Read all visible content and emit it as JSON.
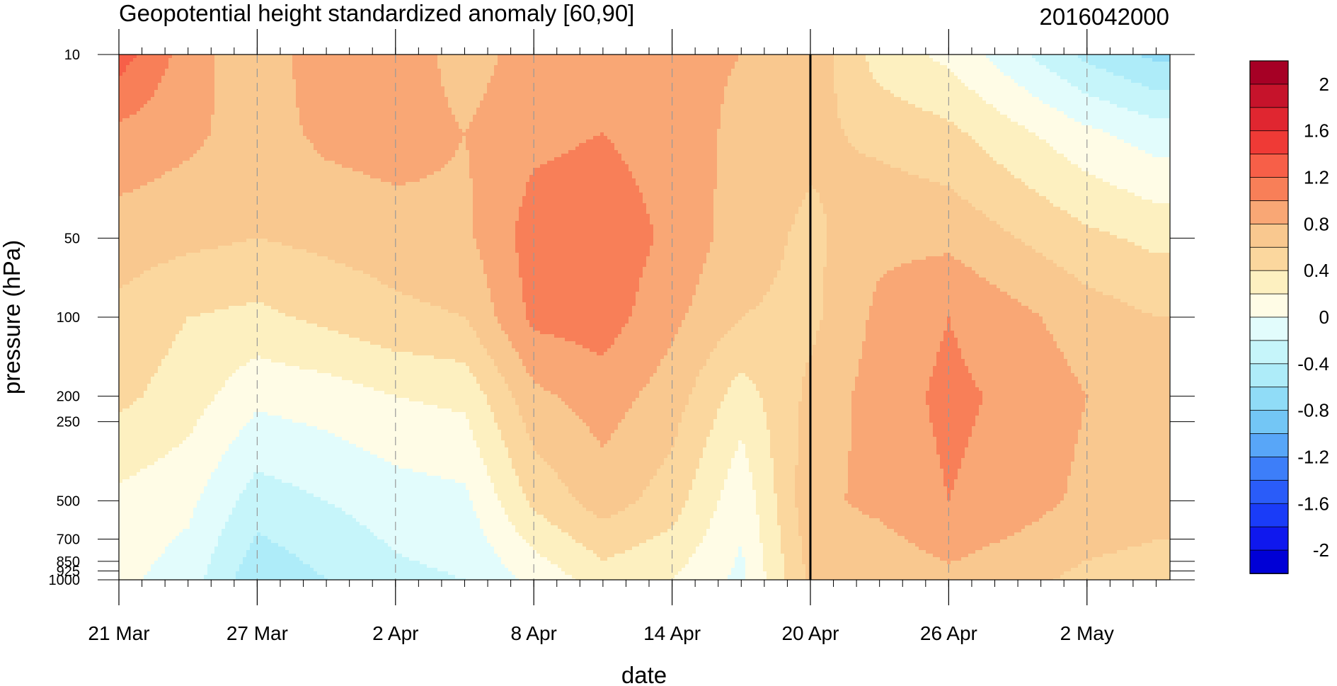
{
  "chart_data": {
    "type": "heatmap",
    "title": "Geopotential height standardized anomaly [60,90]",
    "subtitle": "2016042000",
    "xlabel": "date",
    "ylabel": "pressure (hPa)",
    "x_axis": {
      "unit": "days",
      "range": [
        "21 Mar",
        "5 May"
      ],
      "tick_labels": [
        "21 Mar",
        "27 Mar",
        "2 Apr",
        "8 Apr",
        "14 Apr",
        "20 Apr",
        "26 Apr",
        "2 May"
      ],
      "tick_dates": [
        "2016-03-21",
        "2016-03-27",
        "2016-04-02",
        "2016-04-08",
        "2016-04-14",
        "2016-04-20",
        "2016-04-26",
        "2016-05-02"
      ],
      "minor_tick_interval_days": 1,
      "vertical_marker": "20 Apr"
    },
    "y_axis": {
      "scale": "log",
      "reversed": true,
      "range": [
        1000,
        10
      ],
      "tick_labels": [
        "10",
        "50",
        "100",
        "200",
        "250",
        "500",
        "700",
        "850",
        "925",
        "1000"
      ],
      "tick_values": [
        10,
        50,
        100,
        200,
        250,
        500,
        700,
        850,
        925,
        1000
      ]
    },
    "colorbar": {
      "labels": [
        "2",
        "1.6",
        "1.2",
        "0.8",
        "0.4",
        "0",
        "-0.4",
        "-0.8",
        "-1.2",
        "-1.6",
        "-2"
      ],
      "levels": [
        -2.2,
        -2.0,
        -1.8,
        -1.6,
        -1.4,
        -1.2,
        -1.0,
        -0.8,
        -0.6,
        -0.4,
        -0.2,
        0.0,
        0.2,
        0.4,
        0.6,
        0.8,
        1.0,
        1.2,
        1.4,
        1.6,
        1.8,
        2.0,
        2.2
      ],
      "colors": [
        "#0000d6",
        "#0f18ee",
        "#1a3cf8",
        "#2a5cf9",
        "#3d7ef9",
        "#58a6f8",
        "#73c6f5",
        "#90dcf7",
        "#aeecf9",
        "#c6f5fa",
        "#e2fcfc",
        "#fffce6",
        "#fdf0c0",
        "#fbd79e",
        "#f9c88f",
        "#f9a775",
        "#f87f58",
        "#f75f48",
        "#ef3a36",
        "#e02630",
        "#c6132b",
        "#a60025"
      ]
    },
    "anomaly_field": {
      "description_units": "standardized anomaly",
      "dates": [
        "21 Mar",
        "24 Mar",
        "27 Mar",
        "30 Mar",
        "2 Apr",
        "5 Apr",
        "8 Apr",
        "11 Apr",
        "14 Apr",
        "17 Apr",
        "20 Apr",
        "23 Apr",
        "26 Apr",
        "29 Apr",
        "2 May",
        "5 May"
      ],
      "pressure_hPa": [
        10,
        20,
        50,
        100,
        200,
        500,
        1000
      ],
      "values": [
        [
          1.3,
          0.95,
          0.7,
          0.55,
          0.45,
          0.15,
          0.05
        ],
        [
          0.9,
          0.85,
          0.65,
          0.4,
          0.3,
          0.05,
          -0.1
        ],
        [
          0.65,
          0.7,
          0.6,
          0.35,
          0.05,
          -0.3,
          -0.55
        ],
        [
          0.95,
          0.85,
          0.65,
          0.45,
          0.1,
          -0.2,
          -0.4
        ],
        [
          0.95,
          0.9,
          0.7,
          0.55,
          0.2,
          -0.1,
          -0.25
        ],
        [
          0.7,
          0.8,
          0.75,
          0.6,
          0.25,
          -0.05,
          -0.2
        ],
        [
          0.9,
          0.95,
          1.1,
          1.05,
          0.75,
          0.45,
          0.05
        ],
        [
          0.95,
          1.0,
          1.15,
          1.1,
          0.9,
          0.7,
          0.3
        ],
        [
          0.85,
          0.9,
          0.95,
          0.85,
          0.7,
          0.5,
          0.2
        ],
        [
          0.8,
          0.75,
          0.7,
          0.6,
          0.3,
          0.05,
          -0.05
        ],
        [
          0.75,
          0.65,
          0.55,
          0.55,
          0.65,
          0.75,
          0.65
        ],
        [
          0.3,
          0.55,
          0.75,
          0.85,
          0.9,
          0.85,
          0.65
        ],
        [
          0.15,
          0.45,
          0.75,
          1.0,
          1.05,
          1.0,
          0.75
        ],
        [
          -0.15,
          0.25,
          0.6,
          0.85,
          0.95,
          0.9,
          0.65
        ],
        [
          -0.45,
          0.05,
          0.45,
          0.7,
          0.8,
          0.75,
          0.55
        ],
        [
          -0.65,
          -0.1,
          0.35,
          0.6,
          0.7,
          0.7,
          0.5
        ]
      ]
    }
  }
}
